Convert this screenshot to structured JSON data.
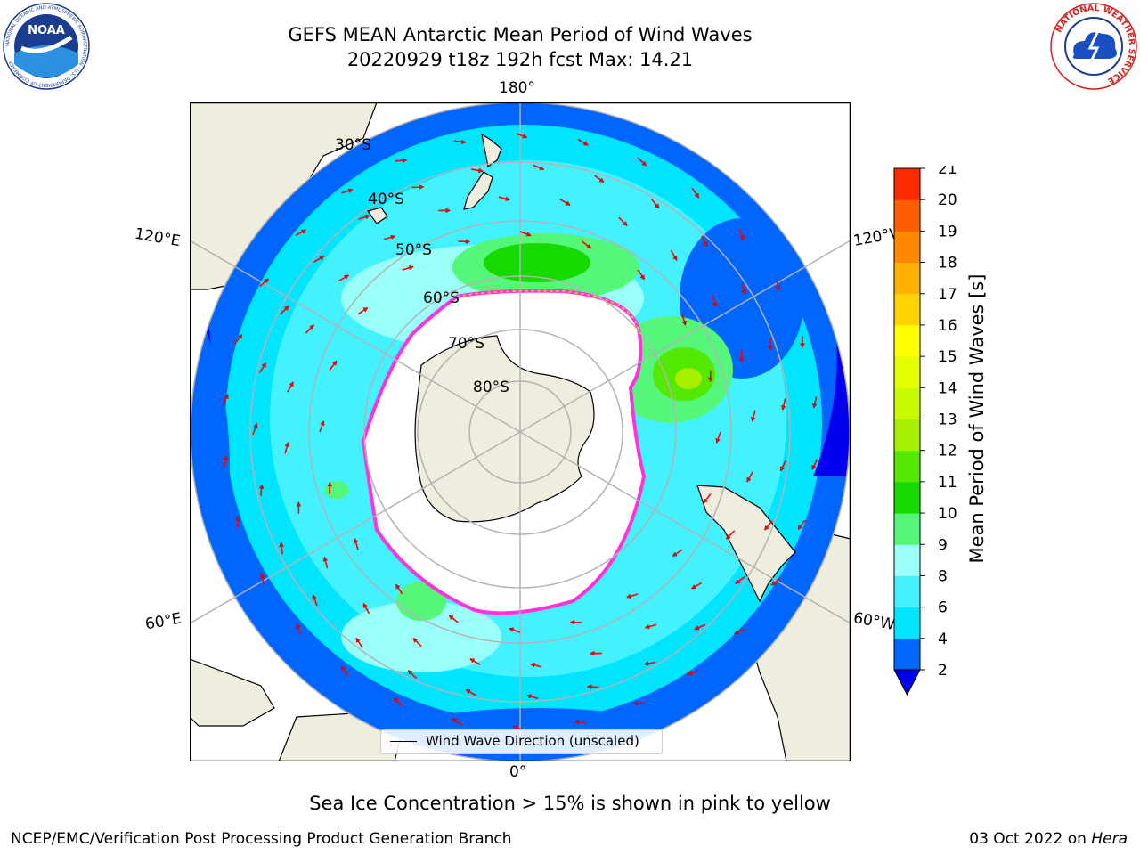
{
  "title": {
    "line1": "GEFS MEAN Antarctic Mean Period of Wind Waves",
    "line2": "20220929 t18z 192h fcst   Max: 14.21"
  },
  "logos": {
    "noaa": {
      "text": "NOAA",
      "ring_text": "NATIONAL OCEANIC AND ATMOSPHERIC ADMINISTRATION · U.S. DEPARTMENT OF COMMERCE"
    },
    "nws": {
      "ring_text": "NATIONAL WEATHER SERVICE"
    }
  },
  "map": {
    "projection": "south-polar-stereographic",
    "lon_labels": {
      "top": "180°",
      "bottom": "0°",
      "left_upper": "120°E",
      "left_lower": "60°E",
      "right_upper": "120°W",
      "right_lower": "60°W"
    },
    "lat_labels": [
      "30°S",
      "40°S",
      "50°S",
      "60°S",
      "70°S",
      "80°S"
    ],
    "legend": "Wind Wave Direction (unscaled)",
    "colors": {
      "land": "#efedde",
      "ice": "#ffffff",
      "ice_edge": "#ff33dd",
      "ice_edge_warm": "#ffc040",
      "arrow": "#ff0000",
      "grid": "#b3b3b3"
    }
  },
  "colorbar": {
    "label": "Mean Period of Wind Waves [s]",
    "ticks": [
      "2",
      "4",
      "6",
      "8",
      "9",
      "10",
      "11",
      "12",
      "13",
      "14",
      "15",
      "16",
      "17",
      "18",
      "19",
      "20",
      "21"
    ],
    "colors": [
      "#0066ff",
      "#00e5ff",
      "#44f2ff",
      "#99fff8",
      "#55f77a",
      "#16d900",
      "#55e800",
      "#a8ee00",
      "#c8fa00",
      "#e6ff00",
      "#ffff00",
      "#ffd300",
      "#ffb000",
      "#ff8800",
      "#ff5e00",
      "#ff2a00"
    ],
    "under_color": "#0000ee",
    "max_value": 14.21
  },
  "caption": "Sea Ice Concentration > 15% is shown in pink to yellow",
  "footer": {
    "left": "NCEP/EMC/Verification Post Processing Product Generation Branch",
    "right_date": "03 Oct 2022 on ",
    "right_machine": "Hera"
  }
}
